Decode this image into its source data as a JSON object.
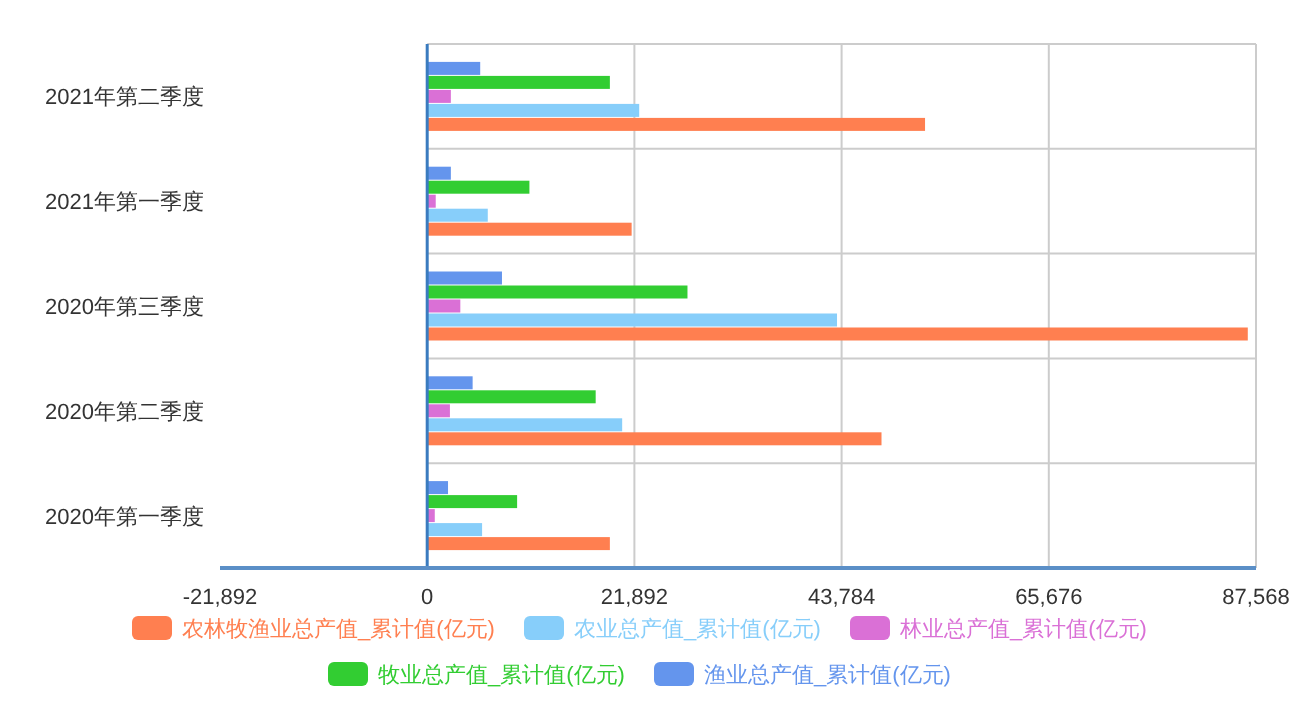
{
  "chart_data": {
    "type": "bar",
    "orientation": "horizontal",
    "categories": [
      "2021年第二季度",
      "2021年第一季度",
      "2020年第三季度",
      "2020年第二季度",
      "2020年第一季度"
    ],
    "series": [
      {
        "name": "农林牧渔业总产值_累计值(亿元)",
        "color": "#ff7f50",
        "values": [
          52600,
          21600,
          86700,
          48000,
          19300
        ]
      },
      {
        "name": "农业总产值_累计值(亿元)",
        "color": "#87cefa",
        "values": [
          22400,
          6400,
          43300,
          20600,
          5800
        ]
      },
      {
        "name": "林业总产值_累计值(亿元)",
        "color": "#da70d6",
        "values": [
          2500,
          900,
          3500,
          2400,
          800
        ]
      },
      {
        "name": "牧业总产值_累计值(亿元)",
        "color": "#32cd32",
        "values": [
          19300,
          10800,
          27500,
          17800,
          9500
        ]
      },
      {
        "name": "渔业总产值_累计值(亿元)",
        "color": "#6495ed",
        "values": [
          5600,
          2500,
          7900,
          4800,
          2200
        ]
      }
    ],
    "xlim": [
      -21892,
      87568
    ],
    "xticks": [
      {
        "value": -21892,
        "label": "-21,892"
      },
      0,
      {
        "value": 21892,
        "label": "21,892"
      },
      {
        "value": 43784,
        "label": "43,784"
      },
      {
        "value": 65676,
        "label": "65,676"
      },
      {
        "value": 87568,
        "label": "87,568"
      }
    ],
    "ref_lines": [
      {
        "axis": "x",
        "value": 0,
        "color": "#3a7bbf"
      }
    ],
    "grid": true,
    "legend": "bottom"
  }
}
